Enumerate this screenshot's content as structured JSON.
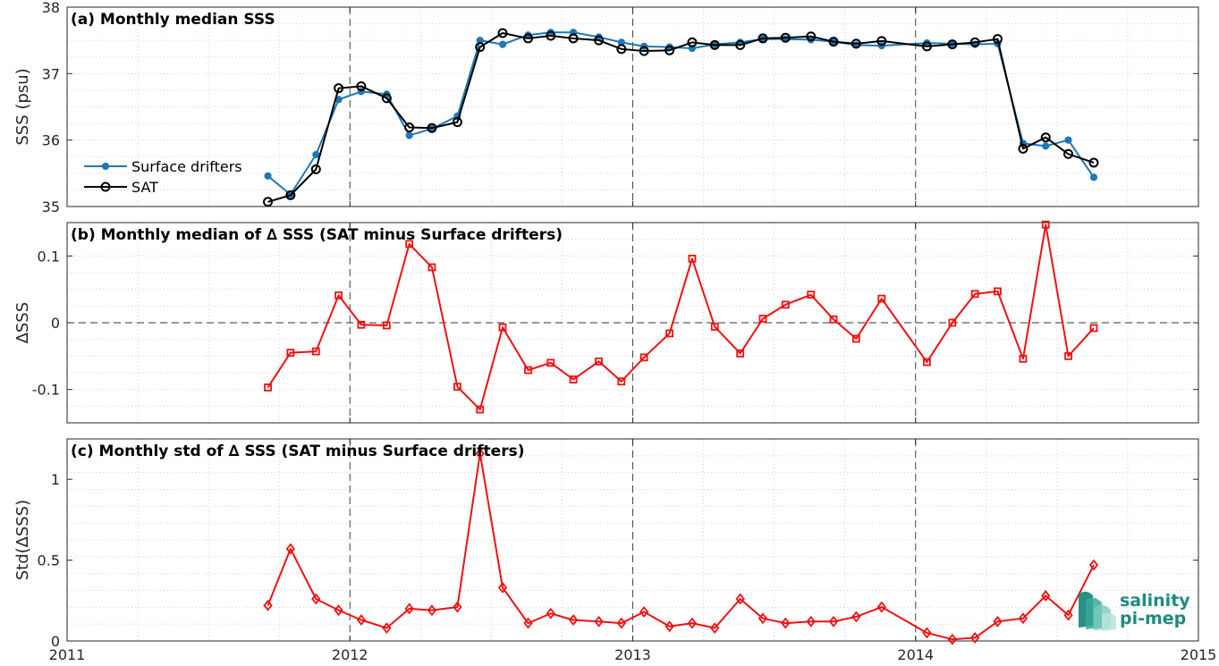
{
  "colors": {
    "drifters": "#1f77b4",
    "sat": "#000000",
    "delta": "#ee1111",
    "logo": "#1f8a80"
  },
  "logo": {
    "line1": "salinity",
    "line2": "pi-mep"
  },
  "chart_data": [
    {
      "type": "line",
      "title": "(a) Monthly median SSS",
      "ylabel": "SSS (psu)",
      "ylim": [
        35,
        38
      ],
      "yticks": [
        35,
        36,
        37,
        38
      ],
      "xlim": [
        2011,
        2015
      ],
      "xticks": [
        2011,
        2012,
        2013,
        2014,
        2015
      ],
      "grid": "dotted minor, dashed at years",
      "legend": "left",
      "x": [
        2011.71,
        2011.79,
        2011.88,
        2011.96,
        2012.04,
        2012.13,
        2012.21,
        2012.29,
        2012.38,
        2012.46,
        2012.54,
        2012.63,
        2012.71,
        2012.79,
        2012.88,
        2012.96,
        2013.04,
        2013.13,
        2013.21,
        2013.29,
        2013.38,
        2013.46,
        2013.54,
        2013.63,
        2013.71,
        2013.79,
        2013.88,
        2014.04,
        2014.13,
        2014.21,
        2014.29,
        2014.38,
        2014.46,
        2014.54,
        2014.63
      ],
      "series": [
        {
          "name": "Surface drifters",
          "marker": "dot",
          "values": [
            35.46,
            35.18,
            35.78,
            36.61,
            36.73,
            36.69,
            36.07,
            36.17,
            36.36,
            37.5,
            37.44,
            37.58,
            37.62,
            37.62,
            37.55,
            37.47,
            37.41,
            37.4,
            37.38,
            37.44,
            37.47,
            37.52,
            37.52,
            37.51,
            37.48,
            37.43,
            37.42,
            37.46,
            37.45,
            37.44,
            37.45,
            35.95,
            35.91,
            36.0,
            35.44
          ]
        },
        {
          "name": "SAT",
          "marker": "circle",
          "values": [
            35.07,
            35.17,
            35.56,
            36.78,
            36.81,
            36.63,
            36.19,
            36.18,
            36.27,
            37.4,
            37.61,
            37.53,
            37.57,
            37.53,
            37.5,
            37.37,
            37.34,
            37.35,
            37.47,
            37.43,
            37.43,
            37.53,
            37.54,
            37.56,
            37.48,
            37.45,
            37.49,
            37.41,
            37.44,
            37.47,
            37.52,
            35.87,
            36.04,
            35.79,
            35.66
          ]
        }
      ]
    },
    {
      "type": "line",
      "title": "(b) Monthly median of ∆ SSS (SAT minus Surface drifters)",
      "ylabel": "∆SSS",
      "ylim": [
        -0.15,
        0.15
      ],
      "yticks": [
        -0.1,
        0,
        0.1
      ],
      "yticklabels": [
        "-0.1",
        "0",
        "0.1"
      ],
      "zero_line": true,
      "xlim": [
        2011,
        2015
      ],
      "series": [
        {
          "name": "",
          "marker": "square",
          "x": [
            2011.71,
            2011.79,
            2011.88,
            2011.96,
            2012.04,
            2012.13,
            2012.21,
            2012.29,
            2012.38,
            2012.46,
            2012.54,
            2012.63,
            2012.71,
            2012.79,
            2012.88,
            2012.96,
            2013.04,
            2013.13,
            2013.21,
            2013.29,
            2013.38,
            2013.46,
            2013.54,
            2013.63,
            2013.71,
            2013.79,
            2013.88,
            2014.04,
            2014.13,
            2014.21,
            2014.29,
            2014.38,
            2014.46,
            2014.54,
            2014.63
          ],
          "values": [
            -0.097,
            -0.045,
            -0.043,
            0.041,
            -0.003,
            -0.004,
            0.118,
            0.083,
            -0.096,
            -0.13,
            -0.007,
            -0.071,
            -0.06,
            -0.085,
            -0.058,
            -0.088,
            -0.052,
            -0.016,
            0.096,
            -0.006,
            -0.046,
            0.006,
            0.027,
            0.042,
            0.005,
            -0.024,
            0.036,
            -0.059,
            0.0,
            0.043,
            0.047,
            -0.054,
            0.147,
            -0.05,
            -0.008
          ]
        }
      ]
    },
    {
      "type": "line",
      "title": "(c) Monthly std of ∆ SSS (SAT minus Surface drifters)",
      "ylabel": "Std(∆SSS)",
      "ylim": [
        0,
        1.25
      ],
      "yticks": [
        0,
        0.5,
        1
      ],
      "yticklabels": [
        "0",
        "0.5",
        "1"
      ],
      "xlim": [
        2011,
        2015
      ],
      "xticks": [
        2011,
        2012,
        2013,
        2014,
        2015
      ],
      "xticklabels": [
        "2011",
        "2012",
        "2013",
        "2014",
        "2015"
      ],
      "series": [
        {
          "name": "",
          "marker": "diamond",
          "x": [
            2011.71,
            2011.79,
            2011.88,
            2011.96,
            2012.04,
            2012.13,
            2012.21,
            2012.29,
            2012.38,
            2012.46,
            2012.54,
            2012.63,
            2012.71,
            2012.79,
            2012.88,
            2012.96,
            2013.04,
            2013.13,
            2013.21,
            2013.29,
            2013.38,
            2013.46,
            2013.54,
            2013.63,
            2013.71,
            2013.79,
            2013.88,
            2014.04,
            2014.13,
            2014.21,
            2014.29,
            2014.38,
            2014.46,
            2014.54,
            2014.63
          ],
          "values": [
            0.22,
            0.57,
            0.26,
            0.19,
            0.13,
            0.08,
            0.2,
            0.19,
            0.21,
            1.16,
            0.33,
            0.11,
            0.17,
            0.13,
            0.12,
            0.11,
            0.18,
            0.09,
            0.11,
            0.08,
            0.26,
            0.14,
            0.11,
            0.12,
            0.12,
            0.15,
            0.21,
            0.05,
            0.01,
            0.02,
            0.12,
            0.14,
            0.28,
            0.16,
            0.47
          ]
        }
      ]
    }
  ]
}
